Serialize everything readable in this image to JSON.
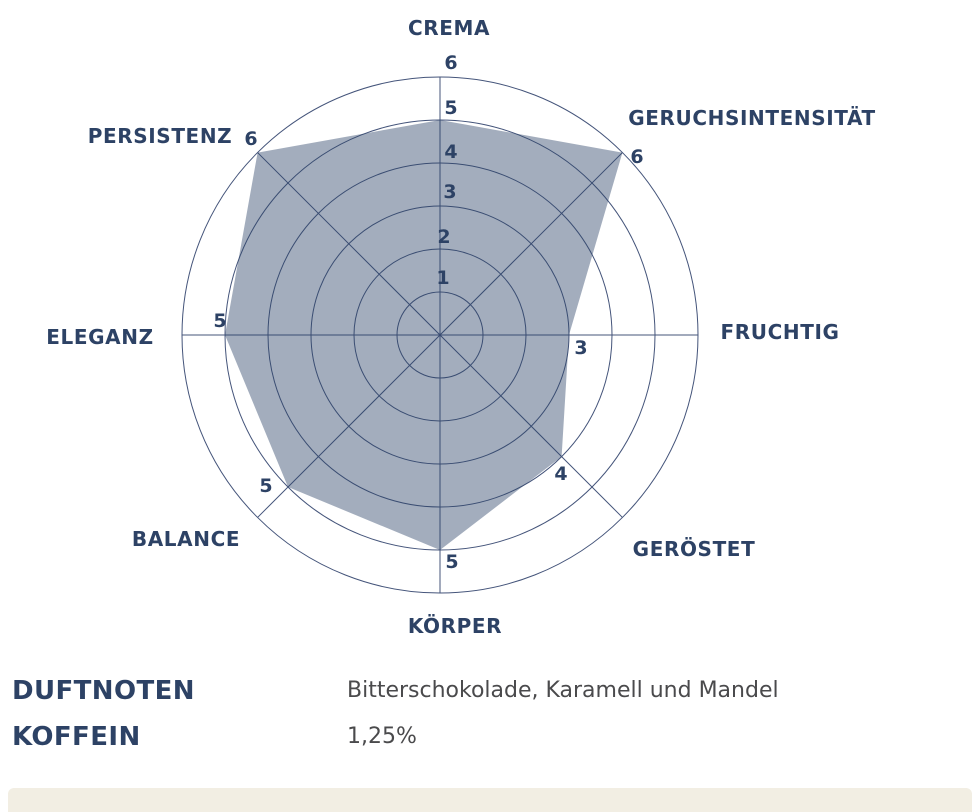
{
  "colors": {
    "navy": "#2d4265",
    "grid_line": "#44547a",
    "polygon_fill": "rgba(46, 69, 104, 0.44)",
    "value_text": "#4a4a4c",
    "panel_bg": "#f2eee3"
  },
  "chart_data": {
    "type": "radar",
    "title": "",
    "categories": [
      "CREMA",
      "GERUCHSINTENSITÄT",
      "FRUCHTIG",
      "GERÖSTET",
      "KÖRPER",
      "BALANCE",
      "ELEGANZ",
      "PERSISTENZ"
    ],
    "values": [
      5,
      6,
      3,
      4,
      5,
      5,
      5,
      6
    ],
    "axes": [
      {
        "label": "CREMA",
        "value": 5
      },
      {
        "label": "GERUCHSINTENSITÄT",
        "value": 6
      },
      {
        "label": "FRUCHTIG",
        "value": 3
      },
      {
        "label": "GERÖSTET",
        "value": 4
      },
      {
        "label": "KÖRPER",
        "value": 5
      },
      {
        "label": "BALANCE",
        "value": 5
      },
      {
        "label": "ELEGANZ",
        "value": 5
      },
      {
        "label": "PERSISTENZ",
        "value": 6
      }
    ],
    "scale": {
      "min": 0,
      "max": 6,
      "ticks": [
        1,
        2,
        3,
        4,
        5,
        6
      ]
    },
    "grid": "circular-spokes",
    "legend": "none"
  },
  "info": {
    "rows": [
      {
        "label": "DUFTNOTEN",
        "value": "Bitterschokolade, Karamell und Mandel"
      },
      {
        "label": "KOFFEIN",
        "value": "1,25%"
      }
    ]
  }
}
